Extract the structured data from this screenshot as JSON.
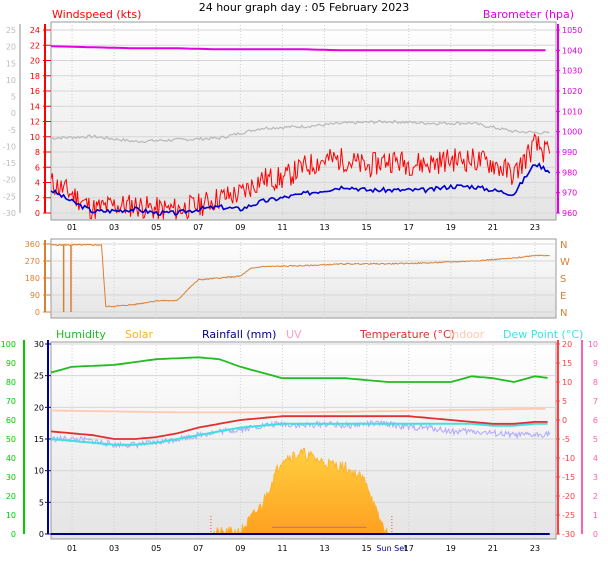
{
  "title": "24 hour graph day : 05 February 2023",
  "colors": {
    "wind": "#ff0000",
    "gust": "#0000cc",
    "barometer": "#e000e0",
    "temp_axis": "#ff4040",
    "grey": "#b8b8b8",
    "direction": "#d98030",
    "humidity": "#22bb22",
    "solar": "#ffb028",
    "rainfall": "#00008b",
    "uv": "#ff9fc0",
    "temperature": "#e03030",
    "indoor": "#ffc8b0",
    "dewpoint": "#40e0e0",
    "hum_axis": "#00cc00",
    "uv_axis": "#ff60b0"
  },
  "x_ticks": [
    "01",
    "03",
    "05",
    "07",
    "09",
    "11",
    "13",
    "15",
    "17",
    "19",
    "21",
    "23"
  ],
  "x_ticks_bottom": [
    "01",
    "03",
    "05",
    "07",
    "09",
    "11",
    "13",
    "15",
    "Sun Set",
    "17",
    "19",
    "21",
    "23"
  ],
  "chart_data": [
    {
      "type": "line",
      "title": "",
      "series": [
        {
          "name": "Windspeed (kts)",
          "x": [
            0,
            1,
            2,
            3,
            4,
            5,
            6,
            7,
            8,
            9,
            10,
            11,
            12,
            13,
            14,
            15,
            16,
            17,
            18,
            19,
            20,
            21,
            22,
            23,
            23.7
          ],
          "values": [
            4,
            2.5,
            0.5,
            1,
            1,
            0.5,
            0.5,
            1,
            2,
            2.5,
            4.5,
            4.5,
            6,
            7,
            7,
            6,
            7,
            6.5,
            6.5,
            7,
            7,
            6.5,
            5,
            9,
            7.5
          ]
        },
        {
          "name": "",
          "x": [
            0,
            1,
            2,
            3,
            4,
            5,
            6,
            7,
            8,
            9,
            10,
            11,
            12,
            13,
            14,
            15,
            16,
            17,
            18,
            19,
            20,
            21,
            22,
            23,
            23.7
          ],
          "values": [
            3,
            1.5,
            0.2,
            0.3,
            0.5,
            0,
            0,
            0.5,
            0.8,
            0.5,
            1.5,
            2,
            2.5,
            3,
            3.5,
            3,
            3,
            3,
            3,
            3.5,
            3.5,
            3,
            2.5,
            6.5,
            5.5
          ]
        },
        {
          "name": "Barometer (hpa)",
          "x": [
            0,
            2,
            4,
            6,
            8,
            10,
            12,
            14,
            16,
            18,
            20,
            22,
            23.7
          ],
          "values": [
            1042,
            1041.5,
            1041,
            1041,
            1040.5,
            1040.5,
            1040.5,
            1040,
            1040,
            1040,
            1040,
            1040,
            1040
          ]
        },
        {
          "name": "",
          "x": [
            0,
            2,
            4,
            6,
            8,
            10,
            12,
            14,
            16,
            18,
            20,
            22,
            23.7
          ],
          "values": [
            -7.5,
            -7,
            -8.5,
            -8,
            -7.5,
            -4.5,
            -4,
            -3,
            -2.5,
            -3,
            -3,
            -5.5,
            -6
          ]
        }
      ],
      "left_axis": {
        "label": "Windspeed (kts)",
        "ticks": [
          0,
          2,
          4,
          6,
          8,
          10,
          12,
          14,
          16,
          18,
          20,
          22,
          24
        ]
      },
      "left_axis2": {
        "ticks": [
          -30,
          -25,
          -20,
          -15,
          -10,
          -5,
          0,
          5,
          10,
          15,
          20,
          25
        ]
      },
      "right_axis": {
        "label": "Barometer (hpa)",
        "ticks": [
          960,
          970,
          980,
          990,
          1000,
          1010,
          1020,
          1030,
          1040,
          1050
        ]
      }
    },
    {
      "type": "line",
      "title": "",
      "series": [
        {
          "name": "",
          "x": [
            0,
            1,
            2,
            2.4,
            2.6,
            3,
            4,
            5,
            6,
            6.5,
            7,
            8,
            9,
            9.5,
            10,
            12,
            14,
            16,
            18,
            20,
            22,
            23,
            23.7
          ],
          "values": [
            355,
            355,
            355,
            355,
            30,
            30,
            40,
            60,
            60,
            120,
            170,
            180,
            190,
            230,
            240,
            245,
            255,
            255,
            260,
            270,
            285,
            300,
            300
          ]
        }
      ],
      "left_axis": {
        "ticks": [
          0,
          90,
          180,
          270,
          360
        ]
      },
      "right_axis": {
        "ticks": [
          "N",
          "W",
          "S",
          "E",
          "N"
        ]
      }
    },
    {
      "type": "line",
      "title": "",
      "series": [
        {
          "name": "Humidity",
          "x": [
            0,
            1,
            3,
            5,
            7,
            8,
            9,
            10,
            11,
            12,
            14,
            16,
            18,
            19,
            20,
            21,
            22,
            23,
            23.7
          ],
          "values": [
            85,
            88,
            89,
            92,
            93,
            92,
            88,
            85,
            82,
            82,
            82,
            80,
            80,
            80,
            83,
            82,
            80,
            83,
            82
          ]
        },
        {
          "name": "Solar",
          "x": [
            0,
            7.5,
            9,
            10,
            11,
            12,
            13,
            14,
            15,
            15.5,
            16,
            23.7
          ],
          "values": [
            0,
            0,
            5,
            60,
            160,
            170,
            150,
            140,
            110,
            40,
            0,
            0
          ]
        },
        {
          "name": "Rainfall (mm)",
          "x": [
            0,
            23.7
          ],
          "values": [
            0,
            0
          ]
        },
        {
          "name": "UV",
          "x": [
            0,
            23.7
          ],
          "values": [
            0,
            0
          ]
        },
        {
          "name": "Temperature (°C)",
          "x": [
            0,
            1,
            2,
            3,
            4,
            5,
            6,
            7,
            8,
            9,
            10,
            11,
            12,
            13,
            14,
            15,
            16,
            17,
            18,
            19,
            20,
            21,
            22,
            23,
            23.7
          ],
          "values": [
            -3,
            -3.5,
            -4,
            -5,
            -5,
            -4.5,
            -3.5,
            -2,
            -1,
            0,
            0.5,
            1,
            1,
            1,
            1,
            1,
            1,
            1,
            0.5,
            0,
            -0.5,
            -1,
            -1,
            -0.5,
            -0.5
          ]
        },
        {
          "name": "Indoor",
          "x": [
            0,
            6,
            12,
            18,
            23.7
          ],
          "values": [
            2.5,
            2,
            2,
            2.5,
            3
          ]
        },
        {
          "name": "Dew Point (°C)",
          "x": [
            0,
            1,
            2,
            3,
            4,
            5,
            6,
            7,
            8,
            9,
            10,
            11,
            12,
            13,
            14,
            15,
            16,
            17,
            18,
            19,
            20,
            21,
            22,
            23,
            23.7
          ],
          "values": [
            -5,
            -5.5,
            -6,
            -6.5,
            -6.5,
            -6,
            -5,
            -4,
            -3,
            -2,
            -1.5,
            -1,
            -1,
            -1,
            -1,
            -1,
            -1,
            -1,
            -1,
            -1,
            -1,
            -1.5,
            -1.5,
            -1,
            -1
          ]
        },
        {
          "name": "",
          "x": [
            0,
            1,
            2,
            3,
            4,
            5,
            6,
            7,
            8,
            9,
            10,
            11,
            12,
            13,
            14,
            15,
            16,
            17,
            18,
            19,
            20,
            21,
            22,
            23,
            23.7
          ],
          "values": [
            -5,
            -5,
            -5.5,
            -6.5,
            -6.5,
            -6,
            -5,
            -4,
            -3,
            -2.5,
            -1.5,
            -1,
            -1.5,
            -1,
            -1.5,
            -1,
            -1,
            -2,
            -2,
            -3,
            -3,
            -3.5,
            -4,
            -4,
            -3.5
          ]
        }
      ],
      "humidity_axis": {
        "ticks": [
          0,
          10,
          20,
          30,
          40,
          50,
          60,
          70,
          80,
          90,
          100
        ]
      },
      "rain_axis": {
        "ticks": [
          0,
          5,
          10,
          15,
          20,
          25,
          30
        ]
      },
      "temp_axis": {
        "ticks": [
          20,
          15,
          10,
          5,
          0,
          -5,
          -10,
          -15,
          -20,
          -25,
          -30
        ]
      },
      "uv_axis": {
        "ticks": [
          10,
          9,
          8,
          7,
          6,
          5,
          4,
          3,
          2,
          1,
          0
        ]
      }
    }
  ]
}
